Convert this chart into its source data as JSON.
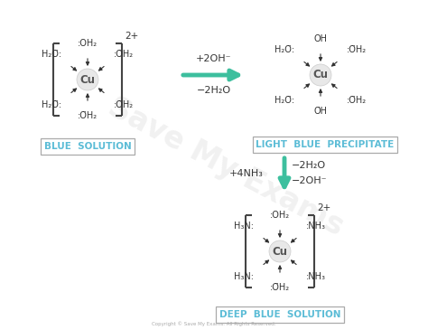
{
  "bg_color": "#ffffff",
  "copyright": "Copyright © Save My Exams. All Rights Reserved.",
  "box1_label": "BLUE  SOLUTION",
  "box2_label": "LIGHT  BLUE  PRECIPITATE",
  "box3_label": "DEEP  BLUE  SOLUTION",
  "label_color": "#5bbcd6",
  "arrow_color": "#3dbf9e",
  "bracket_color": "#444444",
  "cu_text_color": "#555555",
  "ligand_arrow_color": "#333333",
  "reaction1_top": "+2OH⁻",
  "reaction1_bot": "−2H₂O",
  "reaction2_left": "+4NH₃",
  "reaction2_right1": "−2H₂O",
  "reaction2_right2": "−2OH⁻"
}
